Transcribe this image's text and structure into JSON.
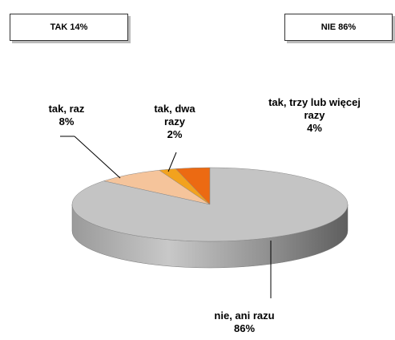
{
  "chart_data": {
    "type": "pie3d",
    "annotations": [
      "TAK 14%",
      "NIE 86%"
    ],
    "categories": [
      "tak, raz",
      "tak, dwa razy",
      "tak, trzy lub więcej razy",
      "nie, ani razu"
    ],
    "values": [
      8,
      2,
      4,
      86
    ],
    "value_labels": [
      "8%",
      "2%",
      "4%",
      "86%"
    ],
    "colors": [
      "#f5c49b",
      "#f2a21e",
      "#ec6a12",
      "#c4c4c4"
    ]
  }
}
